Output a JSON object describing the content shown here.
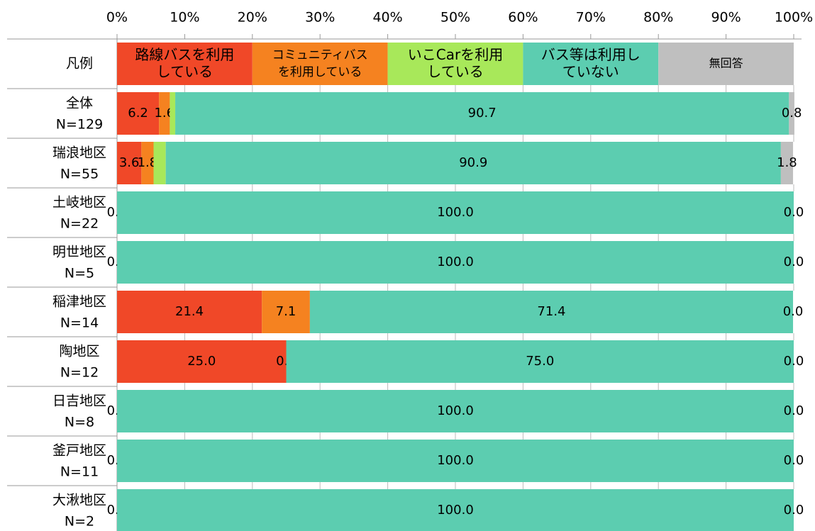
{
  "chart_data": {
    "type": "stacked_barh",
    "legend_title": "凡例",
    "categories": [
      [
        "全体",
        "N=129"
      ],
      [
        "瑞浪地区",
        "N=55"
      ],
      [
        "土岐地区",
        "N=22"
      ],
      [
        "明世地区",
        "N=5"
      ],
      [
        "稲津地区",
        "N=14"
      ],
      [
        "陶地区",
        "N=12"
      ],
      [
        "日吉地区",
        "N=8"
      ],
      [
        "釜戸地区",
        "N=11"
      ],
      [
        "大湫地区",
        "N=2"
      ]
    ],
    "series": [
      {
        "name": "路線バスを利用\nしている",
        "color": "#f04828",
        "values": [
          6.2,
          3.6,
          0,
          0,
          21.4,
          25.0,
          0,
          0,
          0
        ],
        "value_labels": [
          "6.2",
          "3.6",
          "0.0",
          "0.0",
          "21.4",
          "25.0",
          "0.0",
          "0.0",
          "0.0"
        ]
      },
      {
        "name": "コミュニティバス\nを利用している",
        "color": "#f58220",
        "values": [
          1.6,
          1.8,
          0,
          0,
          7.1,
          0,
          0,
          0,
          0
        ],
        "value_labels": [
          "1.6",
          "1.8",
          null,
          null,
          "7.1",
          "0.0",
          null,
          null,
          null
        ]
      },
      {
        "name": "いこCarを利用\nしている",
        "color": "#a8e85a",
        "values": [
          0.8,
          1.8,
          0,
          0,
          0,
          0,
          0,
          0,
          0
        ],
        "value_labels": [
          null,
          null,
          null,
          null,
          null,
          null,
          null,
          null,
          null
        ]
      },
      {
        "name": "バス等は利用し\nていない",
        "color": "#5ccdb0",
        "values": [
          90.7,
          90.9,
          100.0,
          100.0,
          71.4,
          75.0,
          100.0,
          100.0,
          100.0
        ],
        "value_labels": [
          "90.7",
          "90.9",
          "100.0",
          "100.0",
          "71.4",
          "75.0",
          "100.0",
          "100.0",
          "100.0"
        ]
      },
      {
        "name": "無回答",
        "color": "#bfbfbf",
        "values": [
          0.8,
          1.8,
          0,
          0,
          0,
          0,
          0,
          0,
          0
        ],
        "value_labels": [
          "0.8",
          "1.8",
          "0.0",
          "0.0",
          "0.0",
          "0.0",
          "0.0",
          "0.0",
          "0.0"
        ]
      }
    ],
    "xlim": [
      0,
      100
    ],
    "xticks": [
      {
        "value": 0,
        "label": "0%"
      },
      {
        "value": 10,
        "label": "10%"
      },
      {
        "value": 20,
        "label": "20%"
      },
      {
        "value": 30,
        "label": "30%"
      },
      {
        "value": 40,
        "label": "40%"
      },
      {
        "value": 50,
        "label": "50%"
      },
      {
        "value": 60,
        "label": "60%"
      },
      {
        "value": 70,
        "label": "70%"
      },
      {
        "value": 80,
        "label": "80%"
      },
      {
        "value": 90,
        "label": "90%"
      },
      {
        "value": 100,
        "label": "100%"
      }
    ]
  }
}
